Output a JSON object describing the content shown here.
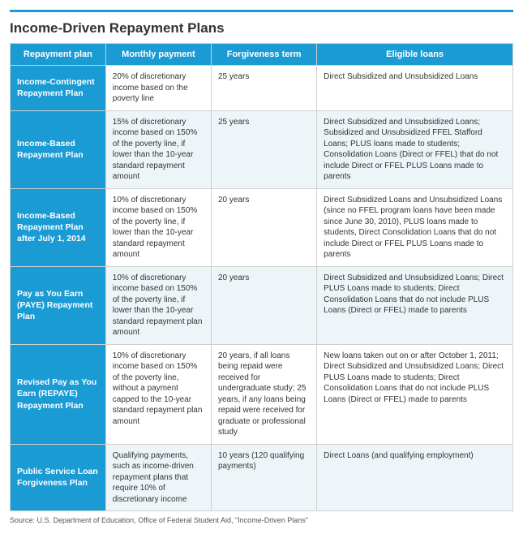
{
  "title": "Income-Driven Repayment Plans",
  "colors": {
    "accent": "#1a9bd4",
    "headerText": "#ffffff",
    "altRow": "#eef5f9",
    "border": "#d0d0d0",
    "bodyText": "#333333",
    "sourceText": "#555555",
    "background": "#ffffff"
  },
  "typography": {
    "title_fontsize": 17,
    "header_fontsize": 11,
    "cell_fontsize": 10,
    "plan_fontsize": 10.5,
    "source_fontsize": 9,
    "font_family": "Arial"
  },
  "layout": {
    "column_widths_pct": [
      19,
      21,
      21,
      39
    ]
  },
  "columns": [
    "Repayment plan",
    "Monthly payment",
    "Forgiveness term",
    "Eligible loans"
  ],
  "rows": [
    {
      "plan": "Income-Contingent Repayment Plan",
      "payment": "20% of discretionary income based on the poverty line",
      "term": "25 years",
      "loans": "Direct Subsidized and Unsubsidized Loans"
    },
    {
      "plan": "Income-Based Repayment Plan",
      "payment": "15% of discretionary income based on 150% of the poverty line, if lower than the 10-year standard repayment amount",
      "term": "25 years",
      "loans": "Direct Subsidized and Unsubsidized Loans; Subsidized and Unsubsidized FFEL Stafford Loans; PLUS loans made to students; Consolidation Loans (Direct or FFEL) that do not include Direct or FFEL PLUS Loans made to parents"
    },
    {
      "plan": "Income-Based Repayment Plan after July 1, 2014",
      "payment": "10% of discretionary income based on 150% of the poverty line, if lower than the 10-year standard repayment amount",
      "term": "20 years",
      "loans": "Direct Subsidized Loans and Unsubsidized Loans (since no FFEL program loans have been made since June 30, 2010), PLUS loans made to students, Direct Consolidation Loans that do not include Direct or FFEL PLUS Loans made to parents"
    },
    {
      "plan": "Pay as You Earn (PAYE) Repayment Plan",
      "payment": "10% of discretionary income based on 150% of the poverty line, if lower than the 10-year standard repayment plan amount",
      "term": "20 years",
      "loans": "Direct Subsidized and Unsubsidized Loans; Direct PLUS Loans made to students; Direct Consolidation Loans that do not include PLUS Loans (Direct or FFEL) made to parents"
    },
    {
      "plan": "Revised Pay as You Earn (REPAYE) Repayment Plan",
      "payment": "10% of discretionary income based on 150% of the poverty line, without a payment capped to the 10-year standard repayment plan amount",
      "term": "20 years, if all loans being repaid were received for undergraduate study; 25 years, if any loans being repaid were received for graduate or professional study",
      "loans": "New loans taken out on or after October 1, 2011; Direct Subsidized and Unsubsidized Loans; Direct PLUS Loans made to students; Direct Consolidation Loans that do not include PLUS Loans (Direct or FFEL) made to parents"
    },
    {
      "plan": "Public Service Loan Forgiveness Plan",
      "payment": "Qualifying payments, such as income-driven repayment plans that require 10% of discretionary income",
      "term": "10 years (120 qualifying payments)",
      "loans": "Direct Loans (and qualifying employment)"
    }
  ],
  "source": "Source: U.S. Department of Education, Office of Federal Student Aid, \"Income-Driven Plans\""
}
